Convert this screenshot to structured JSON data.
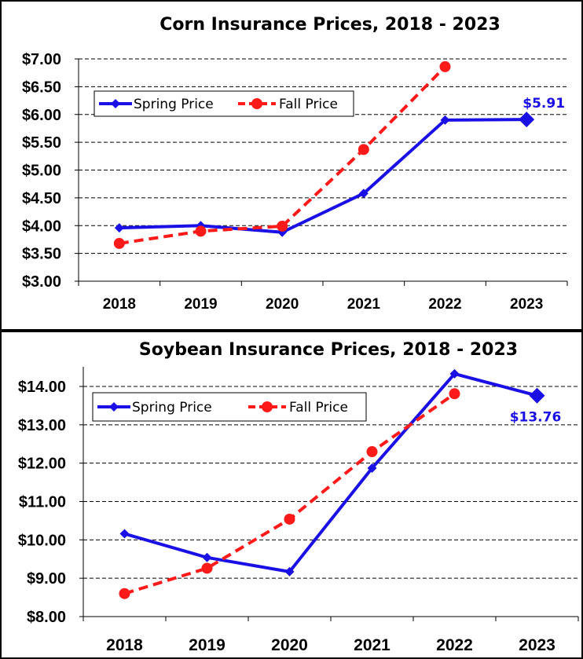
{
  "colors": {
    "spring": "#1a10e6",
    "fall": "#ff1a1a"
  },
  "chart_data": [
    {
      "type": "line",
      "title": "Corn Insurance Prices, 2018 - 2023",
      "categories": [
        "2018",
        "2019",
        "2020",
        "2021",
        "2022",
        "2023"
      ],
      "ylim": [
        3.0,
        7.0
      ],
      "yticks": [
        3.0,
        3.5,
        4.0,
        4.5,
        5.0,
        5.5,
        6.0,
        6.5,
        7.0
      ],
      "ytick_labels": [
        "$3.00",
        "$3.50",
        "$4.00",
        "$4.50",
        "$5.00",
        "$5.50",
        "$6.00",
        "$6.50",
        "$7.00"
      ],
      "grid": true,
      "legend_position": "upper-left",
      "series": [
        {
          "name": "Spring Price",
          "values": [
            3.96,
            4.0,
            3.88,
            4.58,
            5.9,
            5.91
          ]
        },
        {
          "name": "Fall Price",
          "values": [
            3.68,
            3.9,
            3.99,
            5.37,
            6.86,
            null
          ]
        }
      ],
      "annotation": {
        "text": "$5.91",
        "series": 0,
        "index": 5
      }
    },
    {
      "type": "line",
      "title": "Soybean Insurance Prices, 2018 - 2023",
      "categories": [
        "2018",
        "2019",
        "2020",
        "2021",
        "2022",
        "2023"
      ],
      "ylim": [
        8.0,
        14.5
      ],
      "yticks": [
        8,
        9,
        10,
        11,
        12,
        13,
        14
      ],
      "ytick_labels": [
        "$8.00",
        "$9.00",
        "$10.00",
        "$11.00",
        "$12.00",
        "$13.00",
        "$14.00"
      ],
      "grid": true,
      "legend_position": "upper-left",
      "series": [
        {
          "name": "Spring Price",
          "values": [
            10.16,
            9.54,
            9.17,
            11.87,
            14.33,
            13.76
          ]
        },
        {
          "name": "Fall Price",
          "values": [
            8.6,
            9.26,
            10.54,
            12.3,
            13.81,
            null
          ]
        }
      ],
      "annotation": {
        "text": "$13.76",
        "series": 0,
        "index": 5
      }
    }
  ]
}
